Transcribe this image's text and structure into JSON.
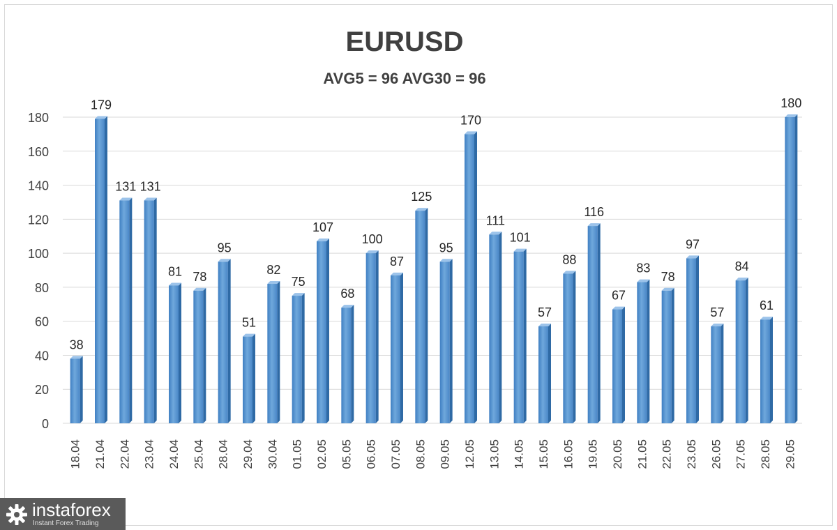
{
  "chart_data": {
    "type": "bar",
    "title": "EURUSD",
    "subtitle": "AVG5 = 96 AVG30 = 96",
    "categories": [
      "18.04",
      "21.04",
      "22.04",
      "23.04",
      "24.04",
      "25.04",
      "28.04",
      "29.04",
      "30.04",
      "01.05",
      "02.05",
      "05.05",
      "06.05",
      "07.05",
      "08.05",
      "09.05",
      "12.05",
      "13.05",
      "14.05",
      "15.05",
      "16.05",
      "19.05",
      "20.05",
      "21.05",
      "22.05",
      "23.05",
      "26.05",
      "27.05",
      "28.05",
      "29.05"
    ],
    "values": [
      38,
      179,
      131,
      131,
      81,
      78,
      95,
      51,
      82,
      75,
      107,
      68,
      100,
      87,
      125,
      95,
      170,
      111,
      101,
      57,
      88,
      116,
      67,
      83,
      78,
      97,
      57,
      84,
      61,
      180
    ],
    "ylim": [
      0,
      180
    ],
    "yticks": [
      0,
      20,
      40,
      60,
      80,
      100,
      120,
      140,
      160,
      180
    ],
    "grid": true,
    "bar_color": "#5b9bd5",
    "data_labels": true
  },
  "logo": {
    "name": "instaforex",
    "tagline": "Instant Forex Trading"
  }
}
